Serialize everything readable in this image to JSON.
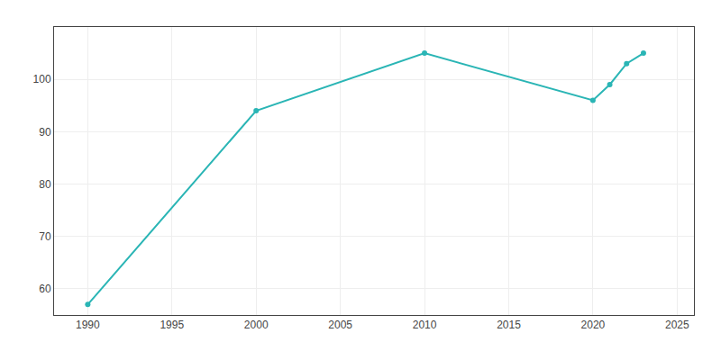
{
  "chart_data": {
    "type": "line",
    "x": [
      1990,
      2000,
      2010,
      2020,
      2021,
      2022,
      2023
    ],
    "values": [
      57,
      94,
      105,
      96,
      99,
      103,
      105
    ],
    "color": "#2AB5B5",
    "marker": "circle",
    "xlim": [
      1988,
      2026
    ],
    "ylim": [
      55,
      110
    ],
    "xticks": [
      1990,
      1995,
      2000,
      2005,
      2010,
      2015,
      2020,
      2025
    ],
    "yticks": [
      60,
      70,
      80,
      90,
      100
    ],
    "grid": true
  }
}
